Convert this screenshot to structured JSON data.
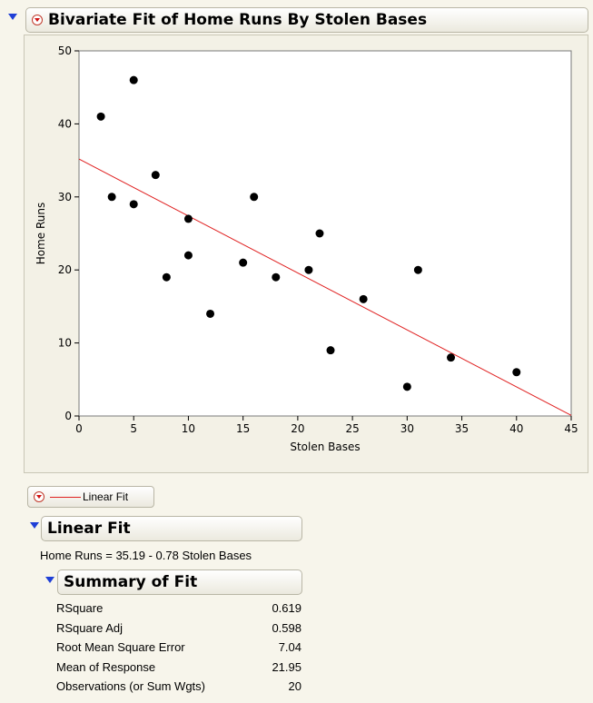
{
  "report": {
    "title": "Bivariate Fit of Home Runs By Stolen Bases"
  },
  "chart_data": {
    "type": "scatter",
    "xlabel": "Stolen Bases",
    "ylabel": "Home Runs",
    "xlim": [
      0,
      45
    ],
    "ylim": [
      0,
      50
    ],
    "xticks": [
      0,
      5,
      10,
      15,
      20,
      25,
      30,
      35,
      40,
      45
    ],
    "yticks": [
      0,
      10,
      20,
      30,
      40,
      50
    ],
    "points": [
      {
        "x": 2,
        "y": 41
      },
      {
        "x": 3,
        "y": 30
      },
      {
        "x": 5,
        "y": 46
      },
      {
        "x": 5,
        "y": 29
      },
      {
        "x": 7,
        "y": 33
      },
      {
        "x": 8,
        "y": 19
      },
      {
        "x": 10,
        "y": 27
      },
      {
        "x": 10,
        "y": 22
      },
      {
        "x": 12,
        "y": 14
      },
      {
        "x": 15,
        "y": 21
      },
      {
        "x": 16,
        "y": 30
      },
      {
        "x": 18,
        "y": 19
      },
      {
        "x": 21,
        "y": 20
      },
      {
        "x": 22,
        "y": 25
      },
      {
        "x": 23,
        "y": 9
      },
      {
        "x": 26,
        "y": 16
      },
      {
        "x": 30,
        "y": 4
      },
      {
        "x": 31,
        "y": 20
      },
      {
        "x": 34,
        "y": 8
      },
      {
        "x": 40,
        "y": 6
      }
    ],
    "fit_line": {
      "intercept": 35.19,
      "slope": -0.78,
      "color": "#e02020"
    },
    "grid": false
  },
  "legend": {
    "label": "Linear Fit",
    "color": "#e02020"
  },
  "linear_fit": {
    "title": "Linear Fit",
    "equation": "Home Runs = 35.19 - 0.78 Stolen Bases"
  },
  "summary": {
    "title": "Summary of Fit",
    "rows": [
      {
        "label": "RSquare",
        "value": "0.619"
      },
      {
        "label": "RSquare Adj",
        "value": "0.598"
      },
      {
        "label": "Root Mean Square Error",
        "value": "7.04"
      },
      {
        "label": "Mean of Response",
        "value": "21.95"
      },
      {
        "label": "Observations (or Sum Wgts)",
        "value": "20"
      }
    ]
  }
}
